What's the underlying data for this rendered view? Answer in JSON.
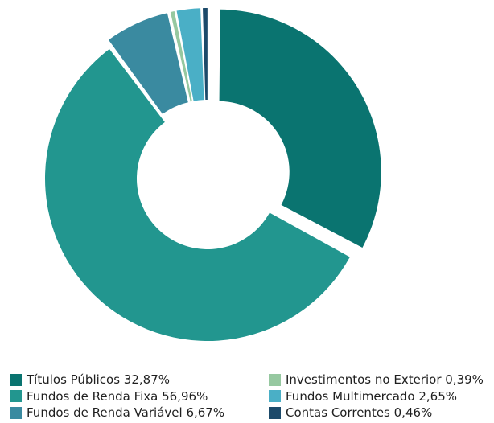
{
  "chart_data": {
    "type": "pie",
    "variant": "donut-exploded",
    "legend_position": "bottom",
    "slices": [
      {
        "label": "Títulos Públicos 32,87%",
        "value": 32.87,
        "color": "#0a7470"
      },
      {
        "label": "Fundos de Renda Fixa 56,96%",
        "value": 56.96,
        "color": "#22968f"
      },
      {
        "label": "Fundos de Renda Variável 6,67%",
        "value": 6.67,
        "color": "#3a8aa0"
      },
      {
        "label": "Investimentos no Exterior 0,39%",
        "value": 0.39,
        "color": "#96c8a0"
      },
      {
        "label": "Fundos Multimercado 2,65%",
        "value": 2.65,
        "color": "#4aafc6"
      },
      {
        "label": "Contas Correntes 0,46%",
        "value": 0.46,
        "color": "#1c4a6a"
      }
    ]
  }
}
